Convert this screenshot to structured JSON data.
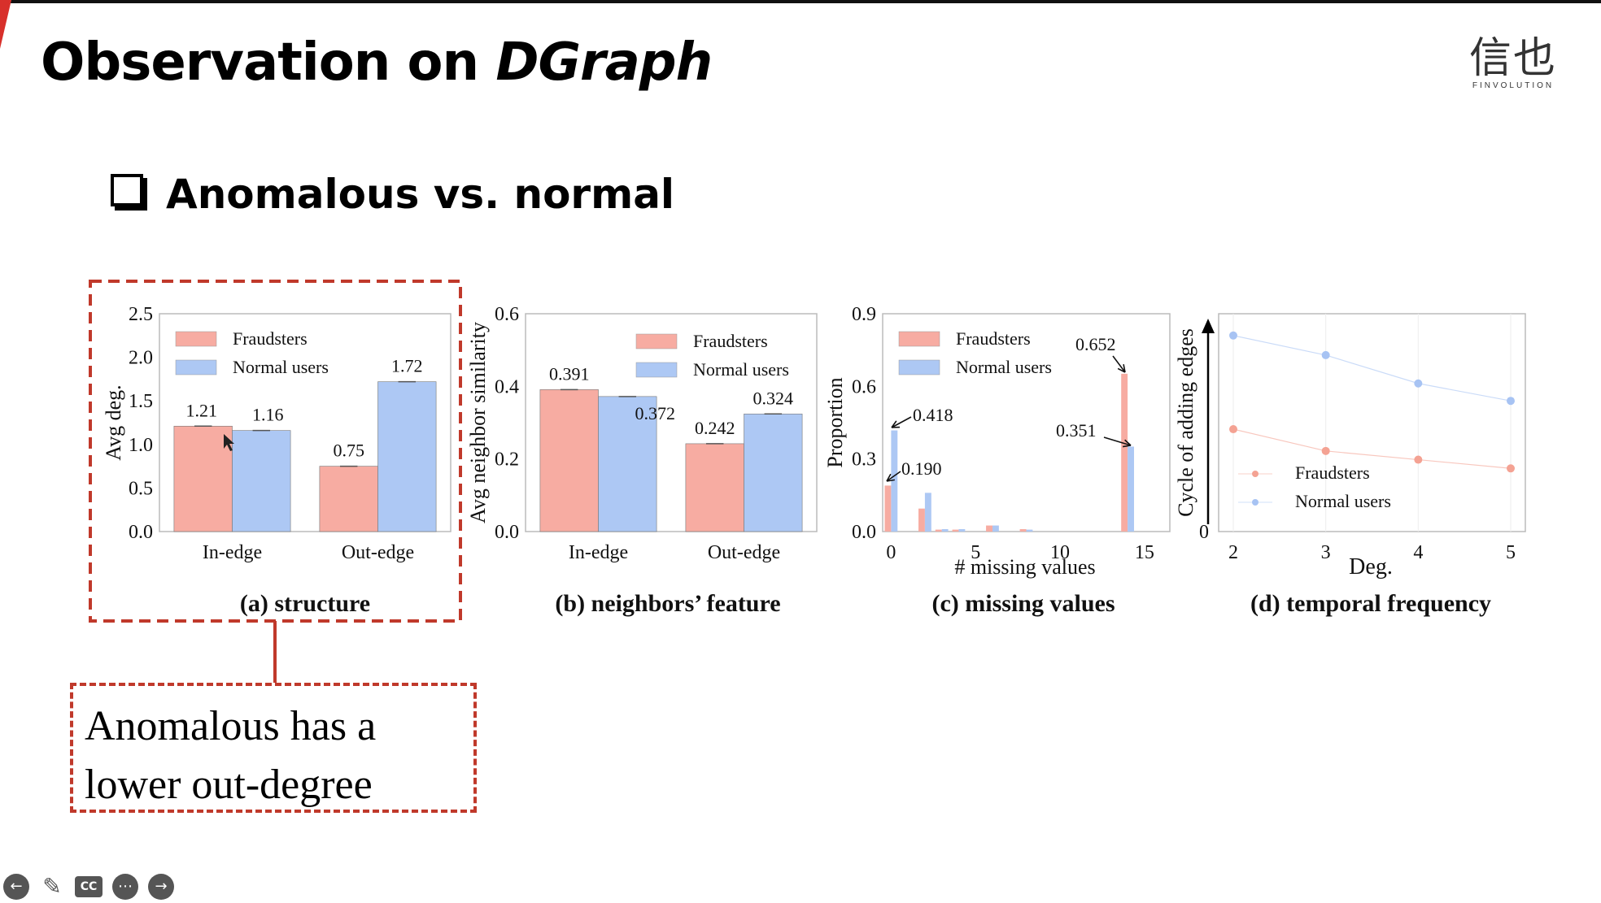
{
  "slide": {
    "title": "Observation on ",
    "title_italic": "DGraph",
    "bullet": "Anomalous vs. normal",
    "callout_line1": "Anomalous has a",
    "callout_line2": "lower out-degree",
    "logo_glyphs": "信也",
    "logo_sub": "FINVOLUTION"
  },
  "colors": {
    "fraud": "#f7aca2",
    "normal": "#adc8f4",
    "fraud_line": "#f4a293",
    "normal_line": "#a7c3f3",
    "highlight": "#c0392b"
  },
  "controls": [
    "back-icon",
    "pen-icon",
    "captions-icon",
    "more-icon",
    "forward-icon"
  ],
  "chart_data": [
    {
      "type": "bar",
      "caption": "(a) structure",
      "ylabel": "Avg deg.",
      "xlabel": "",
      "categories": [
        "In-edge",
        "Out-edge"
      ],
      "series": [
        {
          "name": "Fraudsters",
          "values": [
            1.21,
            0.75
          ]
        },
        {
          "name": "Normal users",
          "values": [
            1.16,
            1.72
          ]
        }
      ],
      "ylim": [
        0,
        2.5
      ],
      "yticks": [
        "0.0",
        "0.5",
        "1.0",
        "1.5",
        "2.0",
        "2.5"
      ],
      "data_labels": [
        "1.21",
        "1.16",
        "0.75",
        "1.72"
      ],
      "legend": "top-left"
    },
    {
      "type": "bar",
      "caption": "(b) neighbors’ feature",
      "ylabel": "Avg neighbor similarity",
      "xlabel": "",
      "categories": [
        "In-edge",
        "Out-edge"
      ],
      "series": [
        {
          "name": "Fraudsters",
          "values": [
            0.391,
            0.242
          ]
        },
        {
          "name": "Normal users",
          "values": [
            0.372,
            0.324
          ]
        }
      ],
      "ylim": [
        0,
        0.6
      ],
      "yticks": [
        "0.0",
        "0.2",
        "0.4",
        "0.6"
      ],
      "data_labels": [
        "0.391",
        "0.372",
        "0.242",
        "0.324"
      ],
      "legend": "top-right"
    },
    {
      "type": "bar",
      "caption": "(c) missing values",
      "ylabel": "Proportion",
      "xlabel": "# missing values",
      "x": [
        0,
        1,
        2,
        3,
        4,
        5,
        6,
        7,
        8,
        9,
        10,
        11,
        12,
        13,
        14
      ],
      "series": [
        {
          "name": "Fraudsters",
          "values": [
            0.19,
            0.0,
            0.095,
            0.008,
            0.008,
            0.0,
            0.025,
            0.0,
            0.01,
            0.0,
            0.0,
            0.0,
            0.0,
            0.0,
            0.652
          ]
        },
        {
          "name": "Normal users",
          "values": [
            0.418,
            0.0,
            0.16,
            0.01,
            0.01,
            0.0,
            0.025,
            0.0,
            0.008,
            0.0,
            0.0,
            0.0,
            0.0,
            0.0,
            0.351
          ]
        }
      ],
      "xlim": [
        -0.5,
        16.5
      ],
      "xticks": [
        0,
        5,
        10,
        15
      ],
      "ylim": [
        0,
        0.9
      ],
      "yticks": [
        "0.0",
        "0.3",
        "0.6",
        "0.9"
      ],
      "annotations": [
        "0.418",
        "0.190",
        "0.652",
        "0.351"
      ],
      "legend": "top-left"
    },
    {
      "type": "line",
      "caption": "(d) temporal frequency",
      "ylabel": "Cycle of adding edges",
      "xlabel": "Deg.",
      "x": [
        2,
        3,
        4,
        5
      ],
      "series": [
        {
          "name": "Fraudsters",
          "values": [
            0.47,
            0.37,
            0.33,
            0.29
          ]
        },
        {
          "name": "Normal users",
          "values": [
            0.9,
            0.81,
            0.68,
            0.6
          ]
        }
      ],
      "ylim": [
        0,
        1
      ],
      "yticks": [
        "0"
      ],
      "legend": "bottom-left"
    }
  ]
}
